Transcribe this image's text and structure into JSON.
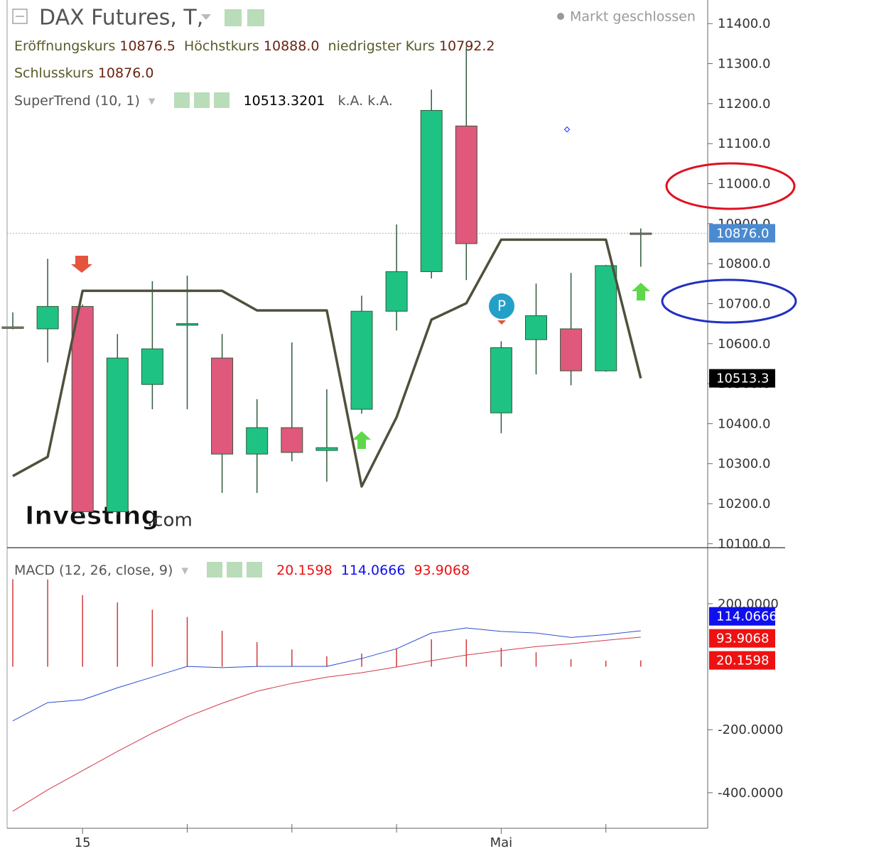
{
  "header": {
    "title": "DAX Futures, T,",
    "status": "Markt geschlossen",
    "open_label": "Eröffnungskurs",
    "high_label": "Höchstkurs",
    "low_label": "niedrigster Kurs",
    "close_label": "Schlusskurs",
    "na": [
      "k.A.",
      "k.A."
    ],
    "watermark": [
      "Investing",
      ".com"
    ],
    "marker": "P"
  },
  "chart_data": [
    {
      "type": "candlestick",
      "categories": [
        null,
        null,
        "15",
        null,
        null,
        null,
        null,
        null,
        null,
        null,
        null,
        null,
        null,
        null,
        "Mai",
        null,
        null,
        null,
        null
      ],
      "open": [
        10642,
        10637,
        10693,
        10180,
        10498,
        10646,
        10564,
        10324,
        10390,
        10333,
        10436,
        10681,
        10780,
        11144,
        10427,
        10610,
        10637,
        10532,
        10876.5
      ],
      "high": [
        10678,
        10812,
        10698,
        10624,
        10756,
        10770,
        10624,
        10461,
        10603,
        10486,
        10720,
        10898,
        11235,
        11343,
        10606,
        10750,
        10777,
        10797,
        10888
      ],
      "low": [
        10636,
        10553,
        10172,
        10172,
        10436,
        10436,
        10227,
        10227,
        10306,
        10255,
        10425,
        10633,
        10763,
        10759,
        10376,
        10523,
        10496,
        10530,
        10792.2
      ],
      "close": [
        10638,
        10693,
        10180,
        10564,
        10587,
        10650,
        10324,
        10390,
        10328,
        10340,
        10681,
        10780,
        11183,
        10850,
        10590,
        10670,
        10532,
        10795,
        10876
      ],
      "last_labels": {
        "open": "10876.5",
        "high": "10888.0",
        "low": "10792.2",
        "close": "10876.0"
      },
      "up_color": "#1ec383",
      "down_color": "#e0587c",
      "wick_color": "#2f5a3c",
      "price_line_color": "#4a8ad0",
      "series": [
        {
          "name": "SuperTrend (10, 1)",
          "color": "#50503c",
          "values": [
            10269,
            10317,
            10732,
            10732,
            10732,
            10732,
            10732,
            10683,
            10683,
            10683,
            10243,
            10416,
            10660,
            10701,
            10860,
            10860,
            10860,
            10860,
            10513.3201
          ],
          "value_labels": [
            null,
            null,
            null,
            null,
            null,
            null,
            null,
            null,
            null,
            null,
            null,
            null,
            null,
            null,
            null,
            null,
            null,
            null,
            "10513.3"
          ]
        }
      ],
      "ylim": [
        10090,
        11459
      ],
      "yticks": [
        {
          "value": 10100,
          "label": "10100.0"
        },
        {
          "value": 10200,
          "label": "10200.0"
        },
        {
          "value": 10300,
          "label": "10300.0"
        },
        {
          "value": 10400,
          "label": "10400.0"
        },
        {
          "value": 10500,
          "label": "10500.0"
        },
        {
          "value": 10600,
          "label": "10600.0"
        },
        {
          "value": 10700,
          "label": "10700.0"
        },
        {
          "value": 10800,
          "label": "10800.0"
        },
        {
          "value": 10900,
          "label": "10900.0"
        },
        {
          "value": 11000,
          "label": "11000.0"
        },
        {
          "value": 11100,
          "label": "11100.0"
        },
        {
          "value": 11200,
          "label": "11200.0"
        },
        {
          "value": 11300,
          "label": "11300.0"
        },
        {
          "value": 11400,
          "label": "11400.0"
        }
      ]
    },
    {
      "type": "macd",
      "title": "MACD (12, 26, close, 9)",
      "histogram": {
        "color": "#d03a3a",
        "values": [
          278,
          277,
          227,
          204,
          181,
          158,
          114,
          78,
          55,
          33,
          42,
          57,
          87,
          87,
          60,
          46,
          24,
          19,
          20.1598
        ]
      },
      "series": [
        {
          "color": "#2a4fd0",
          "values": [
            -172,
            -114,
            -105,
            -67,
            -33,
            1,
            -3,
            1,
            1,
            1,
            26,
            57,
            107,
            123,
            112,
            107,
            93,
            102,
            114.0666
          ]
        },
        {
          "color": "#d03a4a",
          "values": [
            -459,
            -391,
            -330,
            -269,
            -211,
            -159,
            -116,
            -78,
            -53,
            -33,
            -19,
            -1,
            19,
            37,
            51,
            64,
            73,
            84,
            93.9068
          ]
        }
      ],
      "tag_colors": [
        "#ee1111",
        "#1010ee",
        "#ee1111"
      ],
      "ylim": [
        -513,
        378
      ],
      "yticks": [
        {
          "value": 200,
          "label": "200.0000"
        },
        {
          "value": -200,
          "label": "-200.0000"
        },
        {
          "value": -400,
          "label": "-400.0000"
        }
      ]
    }
  ]
}
